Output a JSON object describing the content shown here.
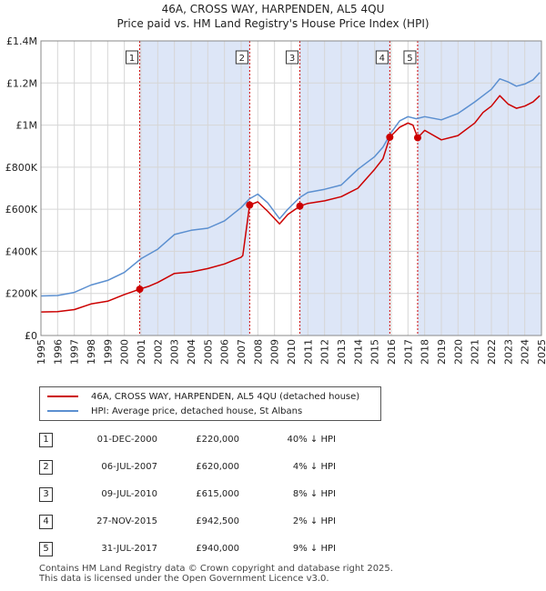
{
  "header": {
    "title": "46A, CROSS WAY, HARPENDEN, AL5 4QU",
    "subtitle": "Price paid vs. HM Land Registry's House Price Index (HPI)"
  },
  "colors": {
    "property": "#cc0000",
    "hpi": "#5b8fd0",
    "shade": "#dde6f7",
    "grid": "#d6d6d6"
  },
  "chart_data": {
    "type": "line",
    "xlim": [
      1995,
      2025
    ],
    "ylim": [
      0,
      1400000
    ],
    "x_ticks": [
      "1995",
      "1996",
      "1997",
      "1998",
      "1999",
      "2000",
      "2001",
      "2002",
      "2003",
      "2004",
      "2005",
      "2006",
      "2007",
      "2008",
      "2009",
      "2010",
      "2011",
      "2012",
      "2013",
      "2014",
      "2015",
      "2016",
      "2017",
      "2018",
      "2019",
      "2020",
      "2021",
      "2022",
      "2023",
      "2024",
      "2025"
    ],
    "y_ticks": [
      {
        "value": 0,
        "label": "£0"
      },
      {
        "value": 200000,
        "label": "£200K"
      },
      {
        "value": 400000,
        "label": "£400K"
      },
      {
        "value": 600000,
        "label": "£600K"
      },
      {
        "value": 800000,
        "label": "£800K"
      },
      {
        "value": 1000000,
        "label": "£1M"
      },
      {
        "value": 1200000,
        "label": "£1.2M"
      },
      {
        "value": 1400000,
        "label": "£1.4M"
      }
    ],
    "grid": true,
    "series": [
      {
        "name": "46A, CROSS WAY, HARPENDEN, AL5 4QU (detached house)",
        "color": "#cc0000",
        "points": [
          [
            1995,
            112000
          ],
          [
            1996,
            113000
          ],
          [
            1997,
            123000
          ],
          [
            1998,
            150000
          ],
          [
            1999,
            163000
          ],
          [
            2000,
            195000
          ],
          [
            2000.92,
            220000
          ],
          [
            2001.5,
            235000
          ],
          [
            2002,
            252000
          ],
          [
            2003,
            295000
          ],
          [
            2004,
            302000
          ],
          [
            2005,
            318000
          ],
          [
            2006,
            340000
          ],
          [
            2007.0,
            372000
          ],
          [
            2007.1,
            380000
          ],
          [
            2007.51,
            620000
          ],
          [
            2008,
            635000
          ],
          [
            2008.6,
            590000
          ],
          [
            2009.3,
            530000
          ],
          [
            2009.8,
            575000
          ],
          [
            2010.52,
            615000
          ],
          [
            2011,
            628000
          ],
          [
            2012,
            640000
          ],
          [
            2013,
            660000
          ],
          [
            2014,
            700000
          ],
          [
            2015,
            790000
          ],
          [
            2015.5,
            840000
          ],
          [
            2015.91,
            942500
          ],
          [
            2016.5,
            990000
          ],
          [
            2017.0,
            1010000
          ],
          [
            2017.3,
            1000000
          ],
          [
            2017.58,
            940000
          ],
          [
            2018,
            975000
          ],
          [
            2019,
            930000
          ],
          [
            2020,
            950000
          ],
          [
            2021,
            1010000
          ],
          [
            2021.5,
            1060000
          ],
          [
            2022,
            1090000
          ],
          [
            2022.5,
            1140000
          ],
          [
            2023,
            1100000
          ],
          [
            2023.5,
            1080000
          ],
          [
            2024,
            1090000
          ],
          [
            2024.5,
            1110000
          ],
          [
            2024.9,
            1140000
          ]
        ]
      },
      {
        "name": "HPI: Average price, detached house, St Albans",
        "color": "#5b8fd0",
        "points": [
          [
            1995,
            188000
          ],
          [
            1996,
            190000
          ],
          [
            1997,
            205000
          ],
          [
            1998,
            240000
          ],
          [
            1999,
            262000
          ],
          [
            2000,
            300000
          ],
          [
            2001,
            365000
          ],
          [
            2002,
            410000
          ],
          [
            2003,
            480000
          ],
          [
            2004,
            500000
          ],
          [
            2005,
            510000
          ],
          [
            2006,
            545000
          ],
          [
            2007,
            608000
          ],
          [
            2007.5,
            650000
          ],
          [
            2008,
            672000
          ],
          [
            2008.6,
            630000
          ],
          [
            2009.3,
            555000
          ],
          [
            2009.8,
            600000
          ],
          [
            2010.5,
            655000
          ],
          [
            2011,
            680000
          ],
          [
            2012,
            695000
          ],
          [
            2013,
            715000
          ],
          [
            2014,
            790000
          ],
          [
            2015,
            850000
          ],
          [
            2015.5,
            895000
          ],
          [
            2016,
            965000
          ],
          [
            2016.5,
            1020000
          ],
          [
            2017,
            1040000
          ],
          [
            2017.5,
            1030000
          ],
          [
            2018,
            1040000
          ],
          [
            2019,
            1025000
          ],
          [
            2020,
            1055000
          ],
          [
            2021,
            1110000
          ],
          [
            2021.5,
            1140000
          ],
          [
            2022,
            1170000
          ],
          [
            2022.5,
            1220000
          ],
          [
            2023,
            1205000
          ],
          [
            2023.5,
            1185000
          ],
          [
            2024,
            1195000
          ],
          [
            2024.5,
            1215000
          ],
          [
            2024.9,
            1250000
          ]
        ]
      }
    ],
    "sale_markers": [
      {
        "label": "1",
        "x": 2000.92,
        "y": 220000
      },
      {
        "label": "2",
        "x": 2007.51,
        "y": 620000
      },
      {
        "label": "3",
        "x": 2010.52,
        "y": 615000
      },
      {
        "label": "4",
        "x": 2015.91,
        "y": 942500
      },
      {
        "label": "5",
        "x": 2017.58,
        "y": 940000
      }
    ]
  },
  "legend": {
    "property_label": "46A, CROSS WAY, HARPENDEN, AL5 4QU (detached house)",
    "hpi_label": "HPI: Average price, detached house, St Albans"
  },
  "sales": [
    {
      "num": "1",
      "date": "01-DEC-2000",
      "price": "£220,000",
      "hpi": "40% ↓ HPI"
    },
    {
      "num": "2",
      "date": "06-JUL-2007",
      "price": "£620,000",
      "hpi": "4% ↓ HPI"
    },
    {
      "num": "3",
      "date": "09-JUL-2010",
      "price": "£615,000",
      "hpi": "8% ↓ HPI"
    },
    {
      "num": "4",
      "date": "27-NOV-2015",
      "price": "£942,500",
      "hpi": "2% ↓ HPI"
    },
    {
      "num": "5",
      "date": "31-JUL-2017",
      "price": "£940,000",
      "hpi": "9% ↓ HPI"
    }
  ],
  "footer": {
    "line1": "Contains HM Land Registry data © Crown copyright and database right 2025.",
    "line2": "This data is licensed under the Open Government Licence v3.0."
  }
}
